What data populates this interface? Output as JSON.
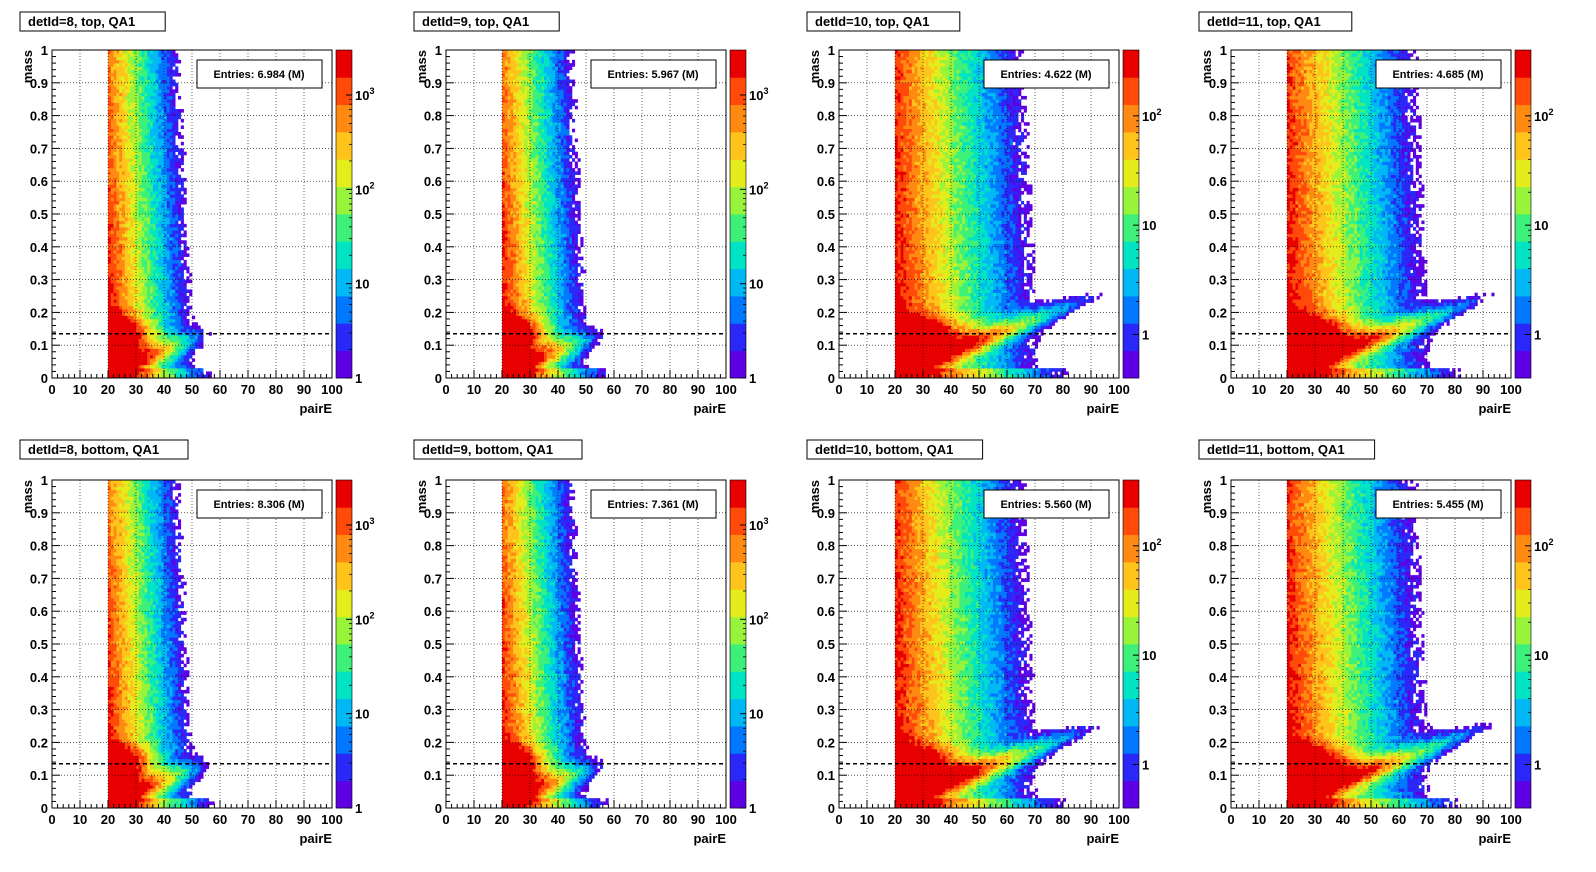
{
  "xlabel": "pairE",
  "ylabel": "mass",
  "chart_data": [
    {
      "type": "heatmap",
      "title": "detId=8, top, QA1",
      "entries": "Entries: 6.984 (M)",
      "xlabel": "pairE",
      "ylabel": "mass",
      "xlim": [
        0,
        100
      ],
      "ylim": [
        0,
        1
      ],
      "zscale": "log",
      "zlim": [
        1,
        3000
      ],
      "z_ticks": [
        "1",
        "10",
        "10^2",
        "10^3"
      ],
      "reference_line_y": 0.135,
      "x_min_cut": 20,
      "grid": true
    },
    {
      "type": "heatmap",
      "title": "detId=9, top, QA1",
      "entries": "Entries: 5.967 (M)",
      "xlabel": "pairE",
      "ylabel": "mass",
      "xlim": [
        0,
        100
      ],
      "ylim": [
        0,
        1
      ],
      "zscale": "log",
      "zlim": [
        1,
        3000
      ],
      "z_ticks": [
        "1",
        "10",
        "10^2",
        "10^3"
      ],
      "reference_line_y": 0.135,
      "x_min_cut": 20,
      "grid": true
    },
    {
      "type": "heatmap",
      "title": "detId=10, top, QA1",
      "entries": "Entries: 4.622 (M)",
      "xlabel": "pairE",
      "ylabel": "mass",
      "xlim": [
        0,
        100
      ],
      "ylim": [
        0,
        1
      ],
      "zscale": "log",
      "zlim": [
        0.4,
        400
      ],
      "z_ticks": [
        "1",
        "10",
        "10^2"
      ],
      "reference_line_y": 0.135,
      "x_min_cut": 20,
      "grid": true
    },
    {
      "type": "heatmap",
      "title": "detId=11, top, QA1",
      "entries": "Entries: 4.685 (M)",
      "xlabel": "pairE",
      "ylabel": "mass",
      "xlim": [
        0,
        100
      ],
      "ylim": [
        0,
        1
      ],
      "zscale": "log",
      "zlim": [
        0.4,
        400
      ],
      "z_ticks": [
        "1",
        "10",
        "10^2"
      ],
      "reference_line_y": 0.135,
      "x_min_cut": 20,
      "grid": true
    },
    {
      "type": "heatmap",
      "title": "detId=8, bottom, QA1",
      "entries": "Entries: 8.306 (M)",
      "xlabel": "pairE",
      "ylabel": "mass",
      "xlim": [
        0,
        100
      ],
      "ylim": [
        0,
        1
      ],
      "zscale": "log",
      "zlim": [
        1,
        3000
      ],
      "z_ticks": [
        "1",
        "10",
        "10^2",
        "10^3"
      ],
      "reference_line_y": 0.135,
      "x_min_cut": 20,
      "grid": true
    },
    {
      "type": "heatmap",
      "title": "detId=9, bottom, QA1",
      "entries": "Entries: 7.361 (M)",
      "xlabel": "pairE",
      "ylabel": "mass",
      "xlim": [
        0,
        100
      ],
      "ylim": [
        0,
        1
      ],
      "zscale": "log",
      "zlim": [
        1,
        3000
      ],
      "z_ticks": [
        "1",
        "10",
        "10^2",
        "10^3"
      ],
      "reference_line_y": 0.135,
      "x_min_cut": 20,
      "grid": true
    },
    {
      "type": "heatmap",
      "title": "detId=10, bottom, QA1",
      "entries": "Entries: 5.560 (M)",
      "xlabel": "pairE",
      "ylabel": "mass",
      "xlim": [
        0,
        100
      ],
      "ylim": [
        0,
        1
      ],
      "zscale": "log",
      "zlim": [
        0.4,
        400
      ],
      "z_ticks": [
        "1",
        "10",
        "10^2"
      ],
      "reference_line_y": 0.135,
      "x_min_cut": 20,
      "grid": true
    },
    {
      "type": "heatmap",
      "title": "detId=11, bottom, QA1",
      "entries": "Entries: 5.455 (M)",
      "xlabel": "pairE",
      "ylabel": "mass",
      "xlim": [
        0,
        100
      ],
      "ylim": [
        0,
        1
      ],
      "zscale": "log",
      "zlim": [
        0.4,
        400
      ],
      "z_ticks": [
        "1",
        "10",
        "10^2"
      ],
      "reference_line_y": 0.135,
      "x_min_cut": 20,
      "grid": true
    }
  ],
  "x_ticks": [
    "0",
    "10",
    "20",
    "30",
    "40",
    "50",
    "60",
    "70",
    "80",
    "90",
    "100"
  ],
  "y_ticks": [
    "0",
    "0.1",
    "0.2",
    "0.3",
    "0.4",
    "0.5",
    "0.6",
    "0.7",
    "0.8",
    "0.9",
    "1"
  ],
  "colors": {
    "reference_line": "#000000",
    "palette": [
      "#5e00e4",
      "#2a28f8",
      "#0078ff",
      "#00b8f4",
      "#00e4c4",
      "#3cf07a",
      "#98f43a",
      "#e4ec1c",
      "#ffc41c",
      "#ff8a12",
      "#ff4a0a",
      "#e80000"
    ]
  }
}
